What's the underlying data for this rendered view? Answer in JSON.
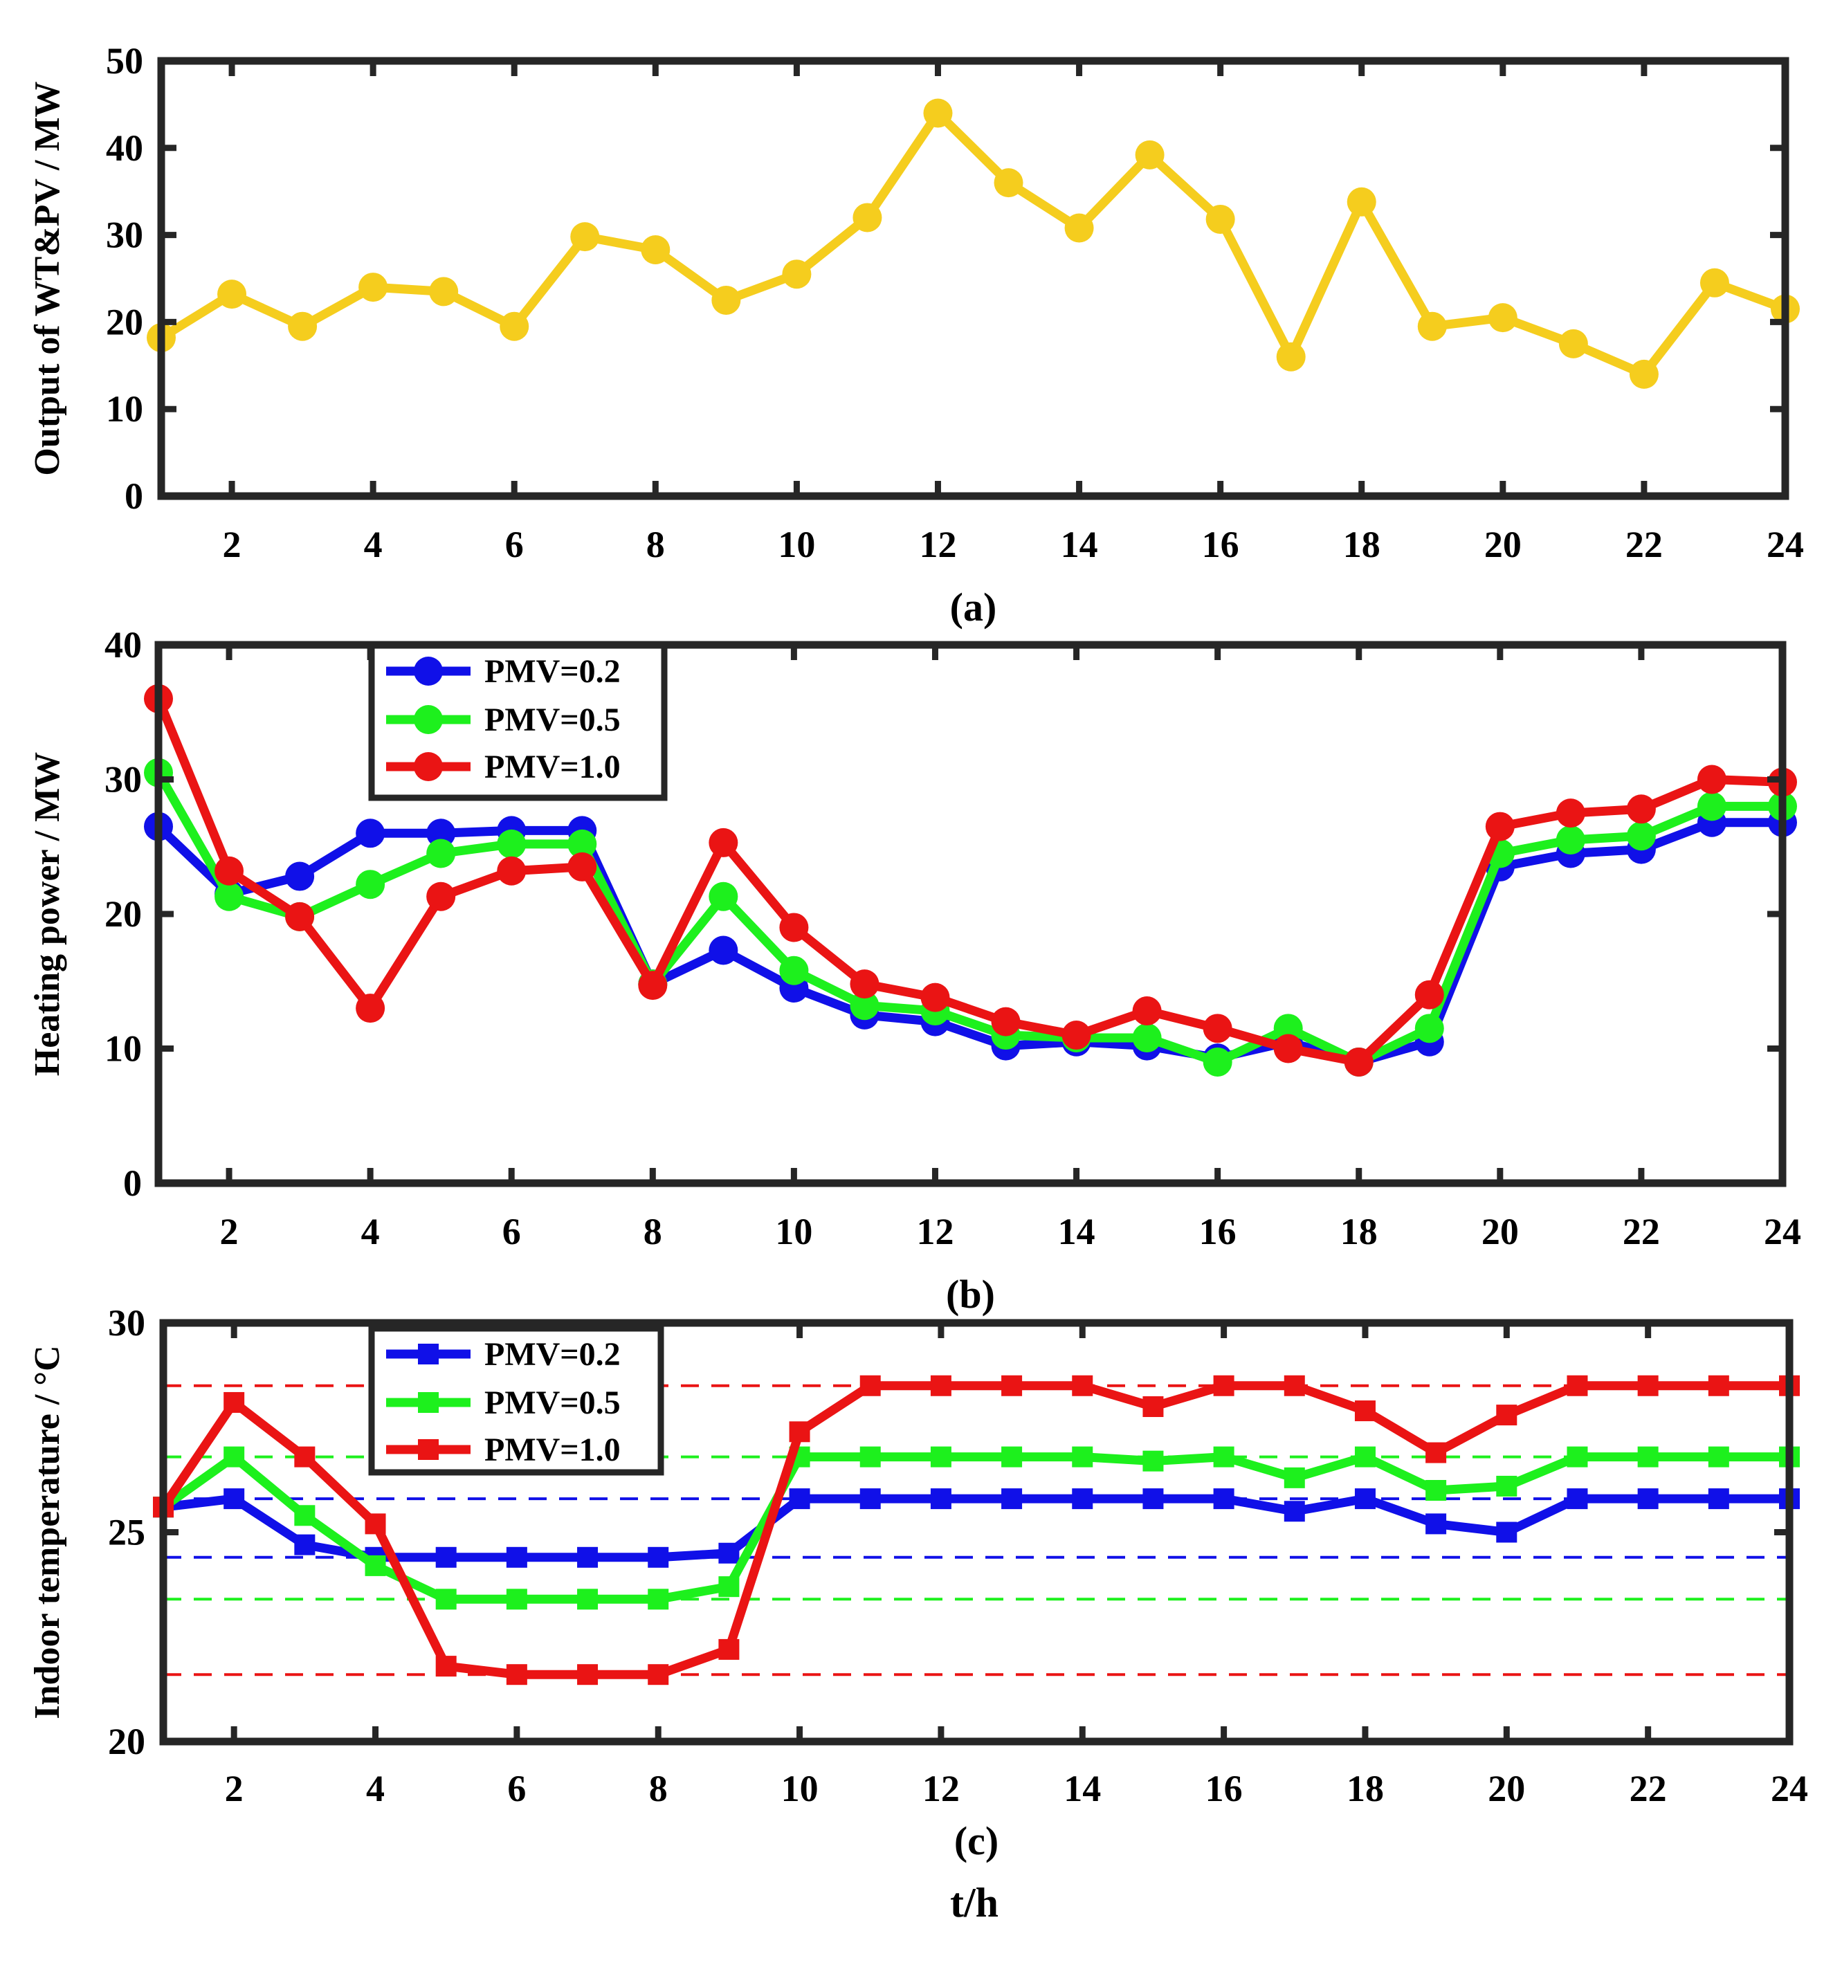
{
  "figure": {
    "xlabel": "t/h",
    "x": [
      1,
      2,
      3,
      4,
      5,
      6,
      7,
      8,
      9,
      10,
      11,
      12,
      13,
      14,
      15,
      16,
      17,
      18,
      19,
      20,
      21,
      22,
      23,
      24
    ],
    "xticks": [
      2,
      4,
      6,
      8,
      10,
      12,
      14,
      16,
      18,
      20,
      22,
      24
    ]
  },
  "chart_data": [
    {
      "type": "line",
      "caption": "(a)",
      "xlabel": "",
      "ylabel": "Output of WT&PV / MW",
      "xlim": [
        1,
        24
      ],
      "ylim": [
        0,
        50
      ],
      "yticks": [
        0,
        10,
        20,
        30,
        40,
        50
      ],
      "series": [
        {
          "name": "WT&PV output",
          "color": "#f5cd1e",
          "marker": "circle",
          "values": [
            18.2,
            23.2,
            19.5,
            24.0,
            23.5,
            19.5,
            29.8,
            28.3,
            22.5,
            25.5,
            32.0,
            44.0,
            36.0,
            30.8,
            39.2,
            31.8,
            16.0,
            33.8,
            19.5,
            20.5,
            17.5,
            14.0,
            24.5,
            21.5
          ]
        }
      ]
    },
    {
      "type": "line",
      "caption": "(b)",
      "xlabel": "",
      "ylabel": "Heating power / MW",
      "xlim": [
        1,
        24
      ],
      "ylim": [
        0,
        40
      ],
      "yticks": [
        0,
        10,
        20,
        30,
        40
      ],
      "legend": "top-left",
      "series": [
        {
          "name": "PMV=0.2",
          "color": "#1010e8",
          "marker": "circle",
          "values": [
            26.5,
            21.5,
            22.8,
            26.0,
            26.0,
            26.2,
            26.2,
            14.8,
            17.3,
            14.5,
            12.5,
            12.0,
            10.2,
            10.5,
            10.2,
            9.3,
            10.5,
            9.0,
            10.5,
            23.5,
            24.5,
            24.8,
            26.8,
            26.8
          ]
        },
        {
          "name": "PMV=0.5",
          "color": "#1df01d",
          "marker": "circle",
          "values": [
            30.5,
            21.3,
            19.8,
            22.2,
            24.5,
            25.2,
            25.2,
            14.8,
            21.3,
            15.8,
            13.2,
            12.8,
            11.0,
            10.8,
            10.8,
            9.0,
            11.5,
            9.0,
            11.5,
            24.5,
            25.5,
            25.8,
            28.0,
            28.0
          ]
        },
        {
          "name": "PMV=1.0",
          "color": "#ea1414",
          "marker": "circle",
          "values": [
            36.0,
            23.2,
            19.8,
            13.0,
            21.3,
            23.2,
            23.5,
            14.7,
            25.3,
            19.0,
            14.8,
            13.8,
            12.0,
            11.0,
            12.8,
            11.5,
            10.0,
            9.0,
            14.0,
            26.5,
            27.5,
            27.8,
            30.0,
            29.8
          ]
        }
      ]
    },
    {
      "type": "line",
      "caption": "(c)",
      "xlabel": "t/h",
      "ylabel": "Indoor temperature / °C",
      "xlim": [
        1,
        24
      ],
      "ylim": [
        20,
        30
      ],
      "yticks": [
        20,
        25,
        30
      ],
      "legend": "top-left",
      "series": [
        {
          "name": "PMV=0.2",
          "color": "#1010e8",
          "marker": "square",
          "values": [
            25.6,
            25.8,
            24.7,
            24.4,
            24.4,
            24.4,
            24.4,
            24.4,
            24.5,
            25.8,
            25.8,
            25.8,
            25.8,
            25.8,
            25.8,
            25.8,
            25.5,
            25.8,
            25.2,
            25.0,
            25.8,
            25.8,
            25.8,
            25.8
          ]
        },
        {
          "name": "PMV=0.5",
          "color": "#1df01d",
          "marker": "square",
          "values": [
            25.6,
            26.8,
            25.4,
            24.2,
            23.4,
            23.4,
            23.4,
            23.4,
            23.7,
            26.8,
            26.8,
            26.8,
            26.8,
            26.8,
            26.7,
            26.8,
            26.3,
            26.8,
            26.0,
            26.1,
            26.8,
            26.8,
            26.8,
            26.8
          ]
        },
        {
          "name": "PMV=1.0",
          "color": "#ea1414",
          "marker": "square",
          "values": [
            25.6,
            28.1,
            26.8,
            25.2,
            21.8,
            21.6,
            21.6,
            21.6,
            22.2,
            27.4,
            28.5,
            28.5,
            28.5,
            28.5,
            28.0,
            28.5,
            28.5,
            27.9,
            26.9,
            27.8,
            28.5,
            28.5,
            28.5,
            28.5
          ]
        }
      ],
      "reference_lines": [
        {
          "color": "#ea1414",
          "y": 28.5
        },
        {
          "color": "#1df01d",
          "y": 26.8
        },
        {
          "color": "#1010e8",
          "y": 25.8
        },
        {
          "color": "#1010e8",
          "y": 24.4
        },
        {
          "color": "#1df01d",
          "y": 23.4
        },
        {
          "color": "#ea1414",
          "y": 21.6
        }
      ]
    }
  ]
}
